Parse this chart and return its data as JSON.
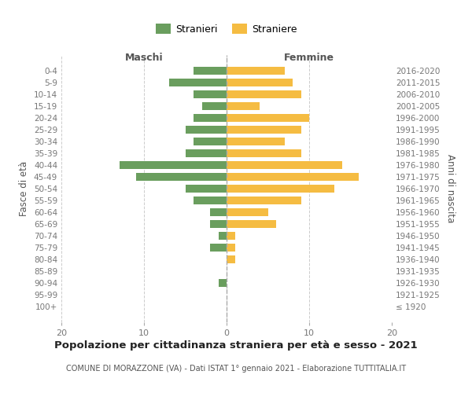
{
  "age_groups": [
    "100+",
    "95-99",
    "90-94",
    "85-89",
    "80-84",
    "75-79",
    "70-74",
    "65-69",
    "60-64",
    "55-59",
    "50-54",
    "45-49",
    "40-44",
    "35-39",
    "30-34",
    "25-29",
    "20-24",
    "15-19",
    "10-14",
    "5-9",
    "0-4"
  ],
  "birth_years": [
    "≤ 1920",
    "1921-1925",
    "1926-1930",
    "1931-1935",
    "1936-1940",
    "1941-1945",
    "1946-1950",
    "1951-1955",
    "1956-1960",
    "1961-1965",
    "1966-1970",
    "1971-1975",
    "1976-1980",
    "1981-1985",
    "1986-1990",
    "1991-1995",
    "1996-2000",
    "2001-2005",
    "2006-2010",
    "2011-2015",
    "2016-2020"
  ],
  "males": [
    0,
    0,
    1,
    0,
    0,
    2,
    1,
    2,
    2,
    4,
    5,
    11,
    13,
    5,
    4,
    5,
    4,
    3,
    4,
    7,
    4
  ],
  "females": [
    0,
    0,
    0,
    0,
    1,
    1,
    1,
    6,
    5,
    9,
    13,
    16,
    14,
    9,
    7,
    9,
    10,
    4,
    9,
    8,
    7
  ],
  "male_color": "#6a9e5e",
  "female_color": "#f5bc42",
  "background_color": "#ffffff",
  "grid_color": "#cccccc",
  "center_line_color": "#aaaaaa",
  "title": "Popolazione per cittadinanza straniera per età e sesso - 2021",
  "subtitle": "COMUNE DI MORAZZONE (VA) - Dati ISTAT 1° gennaio 2021 - Elaborazione TUTTITALIA.IT",
  "ylabel_left": "Fasce di età",
  "ylabel_right": "Anni di nascita",
  "xlabel_maschi": "Maschi",
  "xlabel_femmine": "Femmine",
  "legend_male": "Stranieri",
  "legend_female": "Straniere",
  "xlim": [
    -20,
    20
  ],
  "xticks": [
    -20,
    -10,
    0,
    10,
    20
  ],
  "xtick_labels": [
    "20",
    "10",
    "0",
    "10",
    "20"
  ]
}
